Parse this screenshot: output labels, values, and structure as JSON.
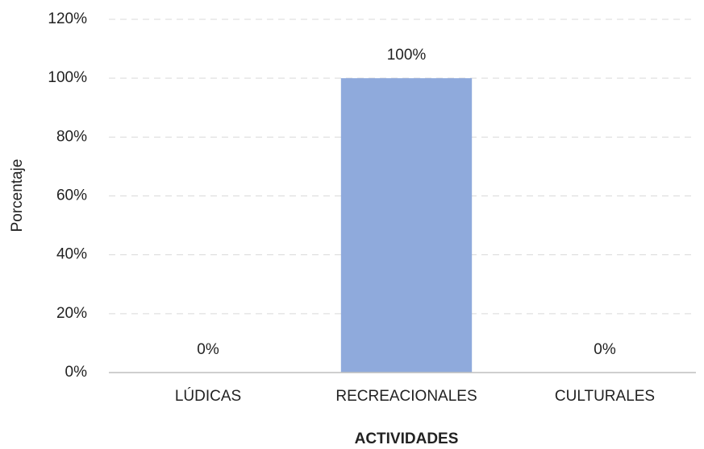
{
  "chart_data": {
    "type": "bar",
    "x_label": "ACTIVIDADES",
    "y_label": "Porcentaje",
    "categories": [
      "LÚDICAS",
      "RECREACIONALES",
      "CULTURALES"
    ],
    "values": [
      0,
      100,
      0
    ],
    "value_labels": [
      "0%",
      "100%",
      "0%"
    ],
    "color": "#8faadc",
    "ylim": [
      0,
      120
    ],
    "yticks": [
      {
        "value": 0,
        "label": "0%"
      },
      {
        "value": 20,
        "label": "20%"
      },
      {
        "value": 40,
        "label": "40%"
      },
      {
        "value": 60,
        "label": "60%"
      },
      {
        "value": 80,
        "label": "80%"
      },
      {
        "value": 100,
        "label": "100%"
      },
      {
        "value": 120,
        "label": "120%"
      }
    ],
    "grid": true
  }
}
